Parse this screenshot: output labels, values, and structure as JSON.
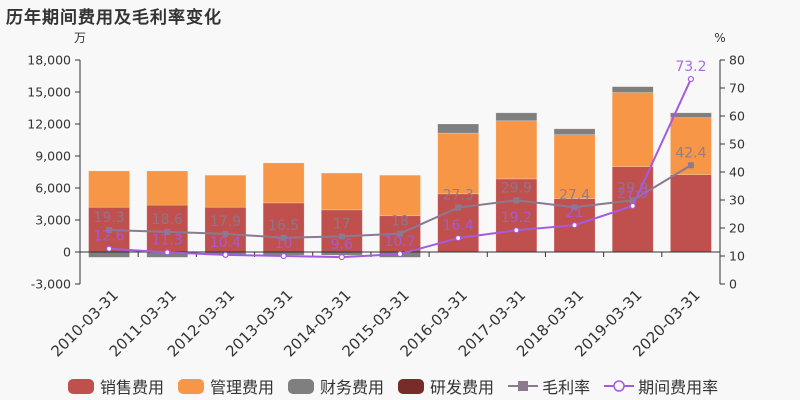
{
  "title": "历年期间费用及毛利率变化",
  "chart_data": {
    "type": "bar",
    "title": "历年期间费用及毛利率变化",
    "categories": [
      "2010-03-31",
      "2011-03-31",
      "2012-03-31",
      "2013-03-31",
      "2014-03-31",
      "2015-03-31",
      "2016-03-31",
      "2017-03-31",
      "2018-03-31",
      "2019-03-31",
      "2020-03-31"
    ],
    "left_axis": {
      "unit": "万",
      "ticks": [
        "18,000",
        "15,000",
        "12,000",
        "9,000",
        "6,000",
        "3,000",
        "0",
        "-3,000"
      ],
      "range": [
        -3000,
        18000
      ]
    },
    "right_axis": {
      "unit": "%",
      "ticks": [
        "80",
        "70",
        "60",
        "50",
        "40",
        "30",
        "20",
        "10",
        "0"
      ],
      "range": [
        0,
        80
      ]
    },
    "series": [
      {
        "name": "销售费用",
        "kind": "bar",
        "color": "#c0504d",
        "values": [
          4200,
          4400,
          4200,
          4600,
          3950,
          3400,
          5450,
          6850,
          5000,
          8000,
          7250
        ]
      },
      {
        "name": "管理费用",
        "kind": "bar",
        "color": "#f79646",
        "values": [
          3400,
          3200,
          3000,
          3750,
          3450,
          3800,
          5700,
          5450,
          6000,
          6950,
          5350
        ]
      },
      {
        "name": "财务费用",
        "kind": "bar",
        "color": "#7f7f7f",
        "values": [
          -500,
          -500,
          -300,
          -300,
          -300,
          -500,
          850,
          750,
          550,
          550,
          450
        ]
      },
      {
        "name": "研发费用",
        "kind": "bar",
        "color": "#772c2a",
        "values": [
          0,
          0,
          0,
          0,
          0,
          0,
          0,
          0,
          0,
          0,
          0
        ]
      },
      {
        "name": "毛利率",
        "kind": "line",
        "axis": "right",
        "color": "#8b7a8f",
        "values": [
          19.3,
          18.6,
          17.9,
          16.5,
          17,
          18,
          27.3,
          29.9,
          27.4,
          29.9,
          42.4
        ]
      },
      {
        "name": "期间费用率",
        "kind": "line",
        "axis": "right",
        "color": "#a55be0",
        "values": [
          12.6,
          11.3,
          10.4,
          10,
          9.6,
          10.7,
          16.4,
          19.2,
          21,
          27.9,
          73.2
        ]
      }
    ],
    "legend_position": "bottom",
    "grid": false
  },
  "legend": [
    {
      "label": "销售费用",
      "type": "swatch",
      "color": "#c0504d"
    },
    {
      "label": "管理费用",
      "type": "swatch",
      "color": "#f79646"
    },
    {
      "label": "财务费用",
      "type": "swatch",
      "color": "#7f7f7f"
    },
    {
      "label": "研发费用",
      "type": "swatch",
      "color": "#772c2a"
    },
    {
      "label": "毛利率",
      "type": "line-square",
      "color": "#8b7a8f"
    },
    {
      "label": "期间费用率",
      "type": "line-circle",
      "color": "#a55be0"
    }
  ]
}
